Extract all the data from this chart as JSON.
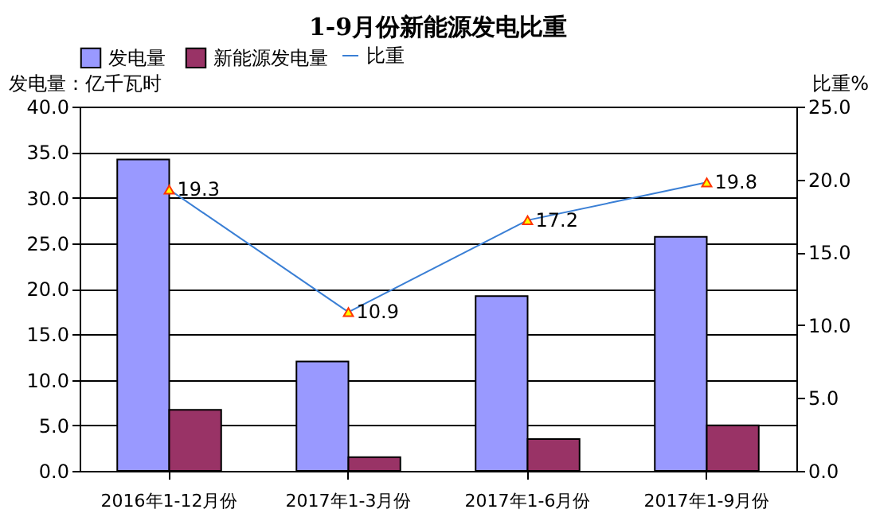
{
  "chart_data": {
    "type": "bar",
    "title": "1-9月份新能源发电比重",
    "ylabel": "发电量：亿千瓦时",
    "y2label": "比重%",
    "categories": [
      "2016年1-12月份",
      "2017年1-3月份",
      "2017年1-6月份",
      "2017年1-9月份"
    ],
    "series": [
      {
        "name": "发电量",
        "color": "#9999ff",
        "values": [
          34.2,
          12.0,
          19.2,
          25.7
        ]
      },
      {
        "name": "新能源发电量",
        "color": "#993366",
        "values": [
          6.7,
          1.5,
          3.5,
          5.0
        ]
      },
      {
        "name": "比重",
        "type": "line",
        "axis": "y2",
        "color": "#3a7fd5",
        "marker": "triangle",
        "data_labels": true,
        "values": [
          19.3,
          10.9,
          17.2,
          19.8
        ]
      }
    ],
    "ylim": [
      0,
      40
    ],
    "yticks": [
      {
        "value": 0,
        "label": "0.0"
      },
      {
        "value": 5,
        "label": "5.0"
      },
      {
        "value": 10,
        "label": "10.0"
      },
      {
        "value": 15,
        "label": "15.0"
      },
      {
        "value": 20,
        "label": "20.0"
      },
      {
        "value": 25,
        "label": "25.0"
      },
      {
        "value": 30,
        "label": "30.0"
      },
      {
        "value": 35,
        "label": "35.0"
      },
      {
        "value": 40,
        "label": "40.0"
      }
    ],
    "y2lim": [
      0,
      25
    ],
    "y2ticks": [
      {
        "value": 0,
        "label": "0.0"
      },
      {
        "value": 5,
        "label": "5.0"
      },
      {
        "value": 10,
        "label": "10.0"
      },
      {
        "value": 15,
        "label": "15.0"
      },
      {
        "value": 20,
        "label": "20.0"
      },
      {
        "value": 25,
        "label": "25.0"
      }
    ],
    "grid": "y",
    "legend": "top"
  }
}
